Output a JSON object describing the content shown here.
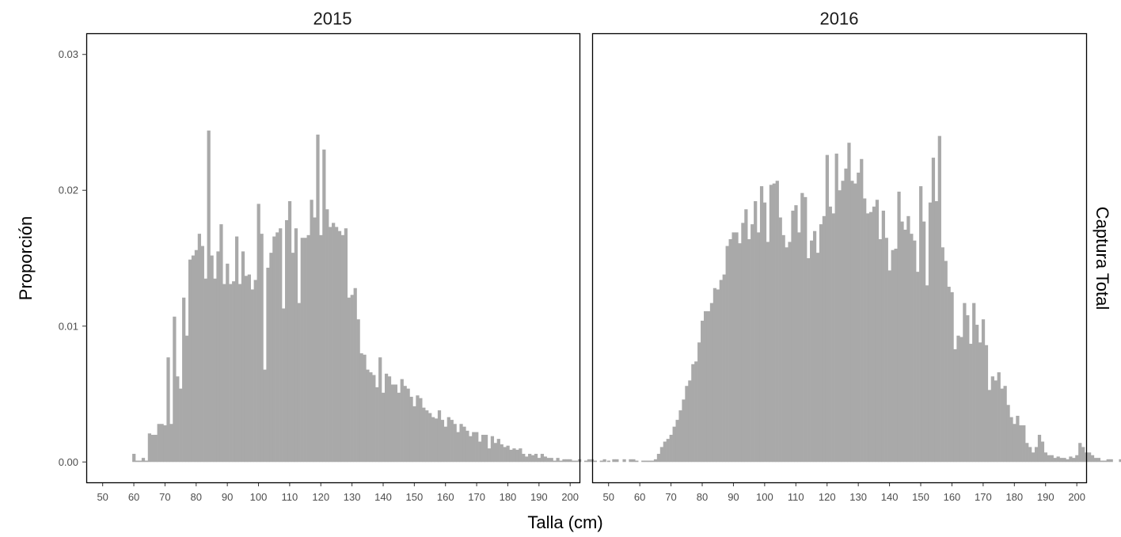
{
  "chart_data": {
    "type": "bar",
    "xlabel": "Talla (cm)",
    "ylabel": "Proporción",
    "facet_label_right": "Captura Total",
    "xlim": [
      45,
      203
    ],
    "ylim": [
      -0.0015,
      0.0315
    ],
    "x_ticks": [
      50,
      60,
      70,
      80,
      90,
      100,
      110,
      120,
      130,
      140,
      150,
      160,
      170,
      180,
      190,
      200
    ],
    "y_ticks": [
      0.0,
      0.01,
      0.02,
      0.03
    ],
    "y_tick_labels": [
      "0.00",
      "0.01",
      "0.02",
      "0.03"
    ],
    "bar_color": "#a9a9a9",
    "grid": false,
    "panels": [
      {
        "title": "2015",
        "x_start": 60,
        "values": [
          0.0006,
          0.0001,
          0.0001,
          0.0003,
          0.0001,
          0.0021,
          0.002,
          0.002,
          0.0028,
          0.0028,
          0.0027,
          0.0077,
          0.0028,
          0.0107,
          0.0063,
          0.0054,
          0.0121,
          0.0093,
          0.0149,
          0.0152,
          0.0156,
          0.0168,
          0.0159,
          0.0135,
          0.0244,
          0.0152,
          0.0135,
          0.0155,
          0.0175,
          0.0131,
          0.0146,
          0.0131,
          0.0133,
          0.0166,
          0.0131,
          0.0155,
          0.0137,
          0.0138,
          0.0127,
          0.0134,
          0.019,
          0.0168,
          0.0068,
          0.0143,
          0.0154,
          0.0166,
          0.0169,
          0.0172,
          0.0113,
          0.0178,
          0.0192,
          0.0154,
          0.0172,
          0.0117,
          0.0165,
          0.0165,
          0.0167,
          0.0193,
          0.018,
          0.0241,
          0.0167,
          0.023,
          0.0186,
          0.0173,
          0.0176,
          0.0173,
          0.017,
          0.0167,
          0.0172,
          0.0121,
          0.0123,
          0.0128,
          0.0105,
          0.008,
          0.0079,
          0.0068,
          0.0066,
          0.0064,
          0.0055,
          0.0077,
          0.0051,
          0.0065,
          0.0063,
          0.0057,
          0.0057,
          0.0051,
          0.0061,
          0.0056,
          0.0054,
          0.0048,
          0.0041,
          0.0049,
          0.0047,
          0.004,
          0.0038,
          0.0036,
          0.0033,
          0.0032,
          0.0038,
          0.0031,
          0.0026,
          0.0033,
          0.0031,
          0.0028,
          0.0022,
          0.0028,
          0.0026,
          0.0023,
          0.0019,
          0.0022,
          0.0022,
          0.0015,
          0.002,
          0.002,
          0.001,
          0.0019,
          0.0014,
          0.0017,
          0.0013,
          0.0011,
          0.0012,
          0.0009,
          0.001,
          0.0009,
          0.001,
          0.0006,
          0.0004,
          0.0006,
          0.0005,
          0.0006,
          0.0003,
          0.0006,
          0.0004,
          0.0003,
          0.0003,
          0.0001,
          0.0003,
          0.0001,
          0.0002,
          0.0002,
          0.0002,
          0.0001,
          0.0001,
          0.0002,
          0.0,
          0.0001,
          0.0002,
          0.0002,
          0.0001,
          0.0,
          0.0001,
          0.0002,
          0.0,
          0.0,
          0.0002,
          0.0002
        ]
      },
      {
        "title": "2016",
        "x_start": 50,
        "values": [
          0.0001,
          0.0,
          0.0,
          0.0,
          0.0,
          0.0002,
          0.0,
          0.0002,
          0.0002,
          0.0001,
          0.0,
          0.0001,
          0.0001,
          0.0001,
          0.0001,
          0.0002,
          0.0006,
          0.0011,
          0.0015,
          0.0017,
          0.002,
          0.0026,
          0.0031,
          0.0038,
          0.0046,
          0.0056,
          0.006,
          0.0072,
          0.0074,
          0.0088,
          0.0104,
          0.0111,
          0.0111,
          0.0117,
          0.0128,
          0.0127,
          0.0134,
          0.0138,
          0.0159,
          0.0164,
          0.0169,
          0.0169,
          0.0161,
          0.0176,
          0.0186,
          0.0164,
          0.0175,
          0.0192,
          0.0169,
          0.0203,
          0.0191,
          0.0162,
          0.0204,
          0.0205,
          0.0207,
          0.018,
          0.0167,
          0.0158,
          0.0162,
          0.0185,
          0.0189,
          0.0169,
          0.0198,
          0.0195,
          0.015,
          0.0163,
          0.017,
          0.0154,
          0.0175,
          0.0181,
          0.0226,
          0.0188,
          0.0183,
          0.0227,
          0.02,
          0.0207,
          0.0216,
          0.0235,
          0.0207,
          0.0205,
          0.0213,
          0.0223,
          0.0194,
          0.0183,
          0.0184,
          0.0188,
          0.0193,
          0.0164,
          0.0185,
          0.0165,
          0.0141,
          0.0156,
          0.0157,
          0.0199,
          0.0177,
          0.0171,
          0.0181,
          0.0168,
          0.0163,
          0.014,
          0.0203,
          0.0177,
          0.013,
          0.0191,
          0.0224,
          0.0192,
          0.024,
          0.0158,
          0.0148,
          0.0129,
          0.0125,
          0.0083,
          0.0093,
          0.0092,
          0.0117,
          0.0108,
          0.0087,
          0.0117,
          0.0101,
          0.0088,
          0.0105,
          0.0086,
          0.0053,
          0.0063,
          0.006,
          0.0066,
          0.0054,
          0.0056,
          0.0042,
          0.0033,
          0.0028,
          0.0034,
          0.0027,
          0.0027,
          0.0014,
          0.0011,
          0.0007,
          0.0011,
          0.002,
          0.0015,
          0.0007,
          0.0005,
          0.0005,
          0.0003,
          0.0004,
          0.0003,
          0.0003,
          0.0002,
          0.0004,
          0.0003,
          0.0005,
          0.0014,
          0.0011,
          0.0007,
          0.0007,
          0.0005,
          0.0003,
          0.0003,
          0.0001,
          0.0001,
          0.0002,
          0.0002,
          0.0,
          0.0,
          0.0002,
          0.0003,
          0.0003,
          0.0003,
          0.0004,
          0.0002,
          0.0003,
          0.0004,
          0.0003,
          0.0003,
          0.0002,
          0.0003,
          0.0004,
          0.001,
          0.0002,
          0.0004,
          0.0002,
          0.0001,
          0.0004,
          0.001,
          0.0001,
          0.0001,
          0.0001,
          0.0004,
          0.0002,
          0.0002,
          0.0,
          0.0,
          0.0,
          0.0,
          0.0,
          0.0,
          0.0,
          0.0001,
          0.0,
          0.0001,
          0.0001,
          0.0,
          0.0001,
          0.0001,
          0.0002,
          0.0001,
          0.0002,
          0.0001,
          0.0,
          0.0,
          0.0,
          0.0,
          0.0,
          0.0001
        ]
      }
    ]
  }
}
